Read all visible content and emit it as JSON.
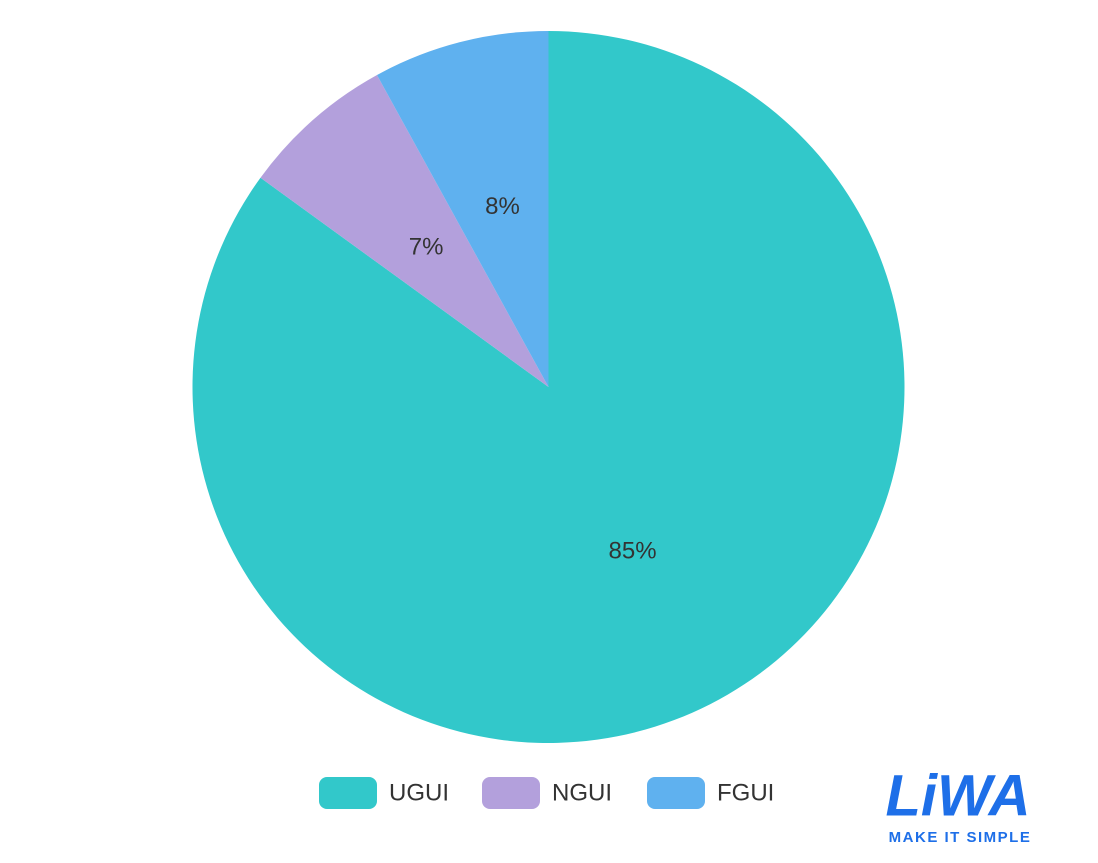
{
  "chart_data": {
    "type": "pie",
    "categories": [
      "UGUI",
      "NGUI",
      "FGUI"
    ],
    "values": [
      85,
      7,
      8
    ],
    "value_labels": [
      "85%",
      "7%",
      "8%"
    ],
    "colors": [
      "#32c8ca",
      "#b3a0dc",
      "#5fb1ef"
    ],
    "start_angle": 0,
    "direction": "clockwise",
    "legend": "bottom"
  },
  "watermark": {
    "logo": "LiWA",
    "tagline": "MAKE IT SIMPLE"
  }
}
